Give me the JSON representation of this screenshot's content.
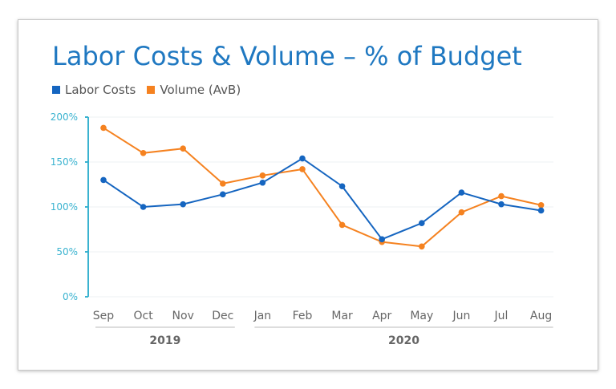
{
  "chart_data": {
    "type": "line",
    "title": "Labor Costs & Volume – % of Budget",
    "categories": [
      "Sep",
      "Oct",
      "Nov",
      "Dec",
      "Jan",
      "Feb",
      "Mar",
      "Apr",
      "May",
      "Jun",
      "Jul",
      "Aug"
    ],
    "groups": [
      {
        "label": "2019",
        "from": 0,
        "to": 3
      },
      {
        "label": "2020",
        "from": 4,
        "to": 11
      }
    ],
    "yticks": [
      "0%",
      "50%",
      "100%",
      "150%",
      "200%"
    ],
    "ylim": [
      0,
      200
    ],
    "grid": true,
    "legend_position": "top-left",
    "series": [
      {
        "name": "Labor Costs",
        "color": "#1565c0",
        "values": [
          130,
          100,
          103,
          114,
          127,
          154,
          123,
          64,
          82,
          116,
          103,
          96
        ]
      },
      {
        "name": "Volume (AvB)",
        "color": "#f58220",
        "values": [
          188,
          160,
          165,
          126,
          135,
          142,
          80,
          61,
          56,
          94,
          112,
          102
        ]
      }
    ]
  }
}
